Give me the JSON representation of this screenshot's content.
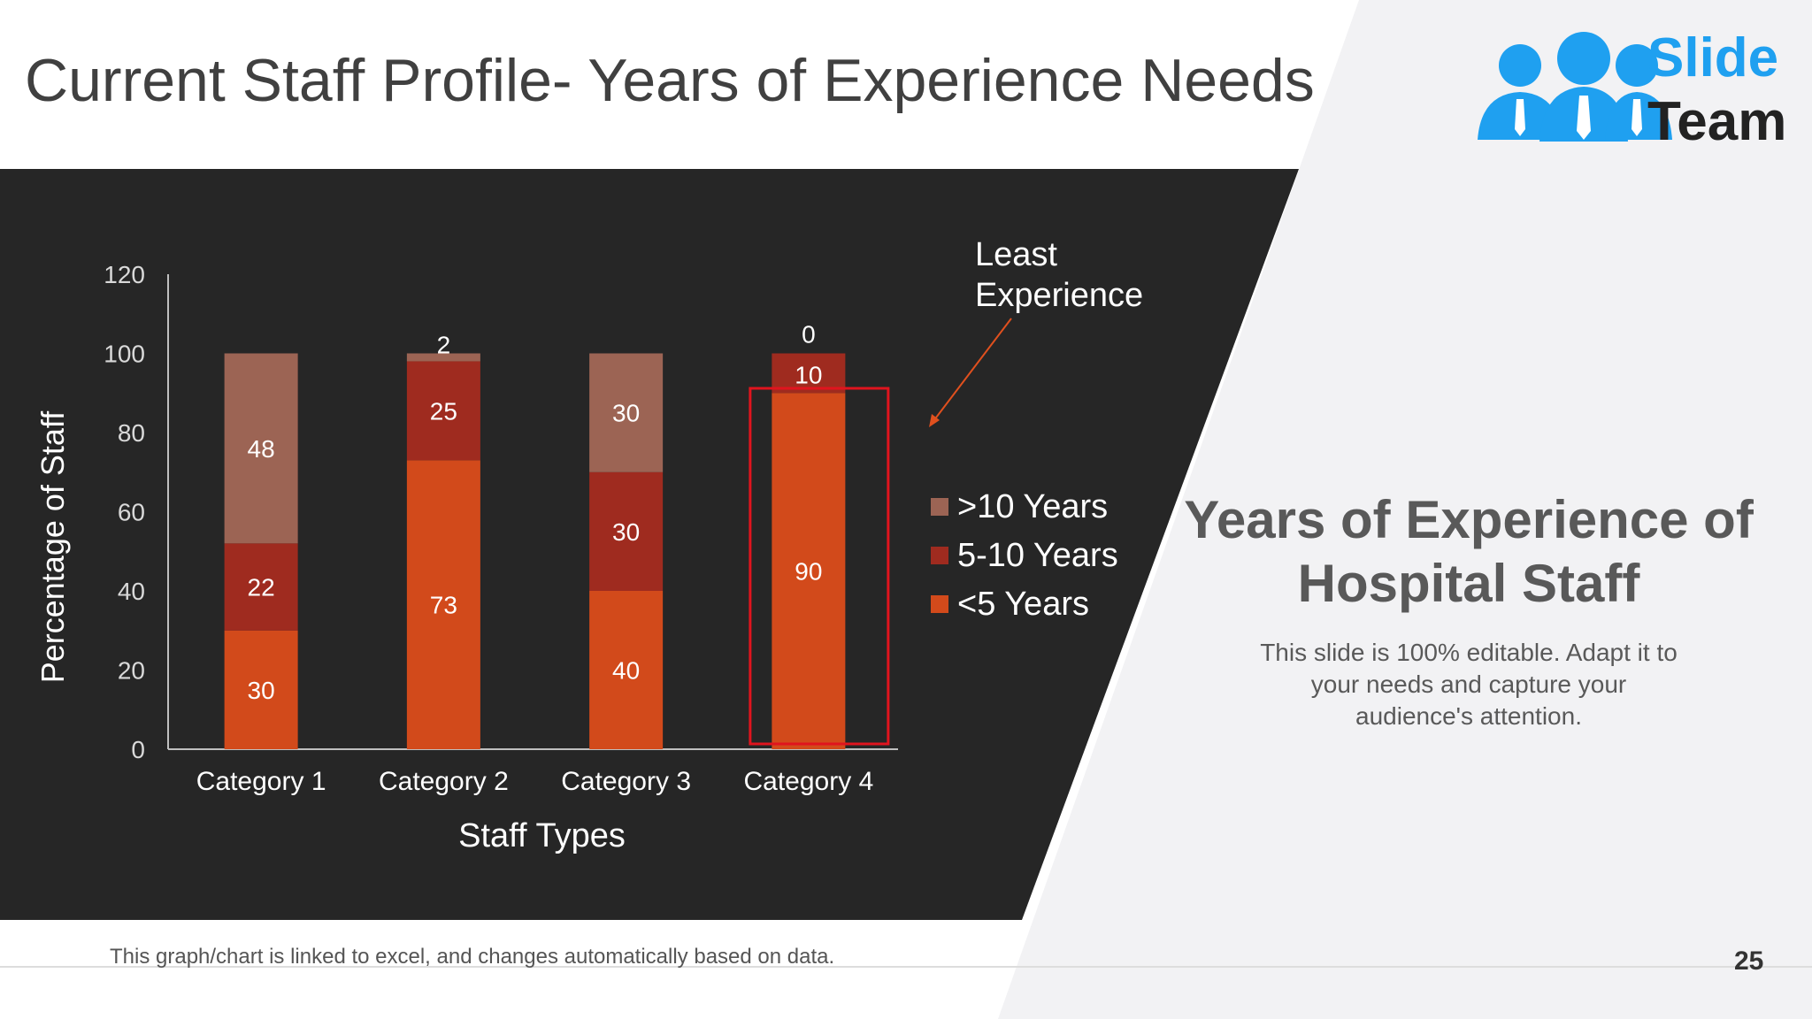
{
  "slide": {
    "title": "Current Staff Profile- Years of Experience Needs",
    "side_heading": "Years of Experience of Hospital Staff",
    "side_text": "This slide is 100% editable. Adapt it to your needs and capture your audience's attention.",
    "footnote": "This graph/chart is linked to excel, and changes automatically based on data.",
    "page_number": "25"
  },
  "logo": {
    "word1": "Slide",
    "word2": "Team",
    "icon": "people-group-icon",
    "colors": {
      "primary": "#1fa0f0",
      "text": "#222222"
    }
  },
  "chart_data": {
    "type": "bar",
    "stacked": true,
    "categories": [
      "Category 1",
      "Category 2",
      "Category 3",
      "Category 4"
    ],
    "series": [
      {
        "name": "<5 Years",
        "values": [
          30,
          73,
          40,
          90
        ],
        "color": "#d24a1b"
      },
      {
        "name": "5-10 Years",
        "values": [
          22,
          25,
          30,
          10
        ],
        "color": "#9f2b1f"
      },
      {
        "name": ">10 Years",
        "values": [
          48,
          2,
          30,
          0
        ],
        "color": "#9c6454"
      }
    ],
    "title": "",
    "xlabel": "Staff Types",
    "ylabel": "Percentage of Staff",
    "ylim": [
      0,
      120
    ],
    "yticks": [
      0,
      20,
      40,
      60,
      80,
      100,
      120
    ],
    "grid": false,
    "legend": "right",
    "annotation": {
      "text_lines": [
        "Least",
        "Experience"
      ],
      "target_category": "Category 4",
      "highlight_color": "#e0141e",
      "arrow_color": "#e0501e"
    },
    "background": "#262626"
  }
}
